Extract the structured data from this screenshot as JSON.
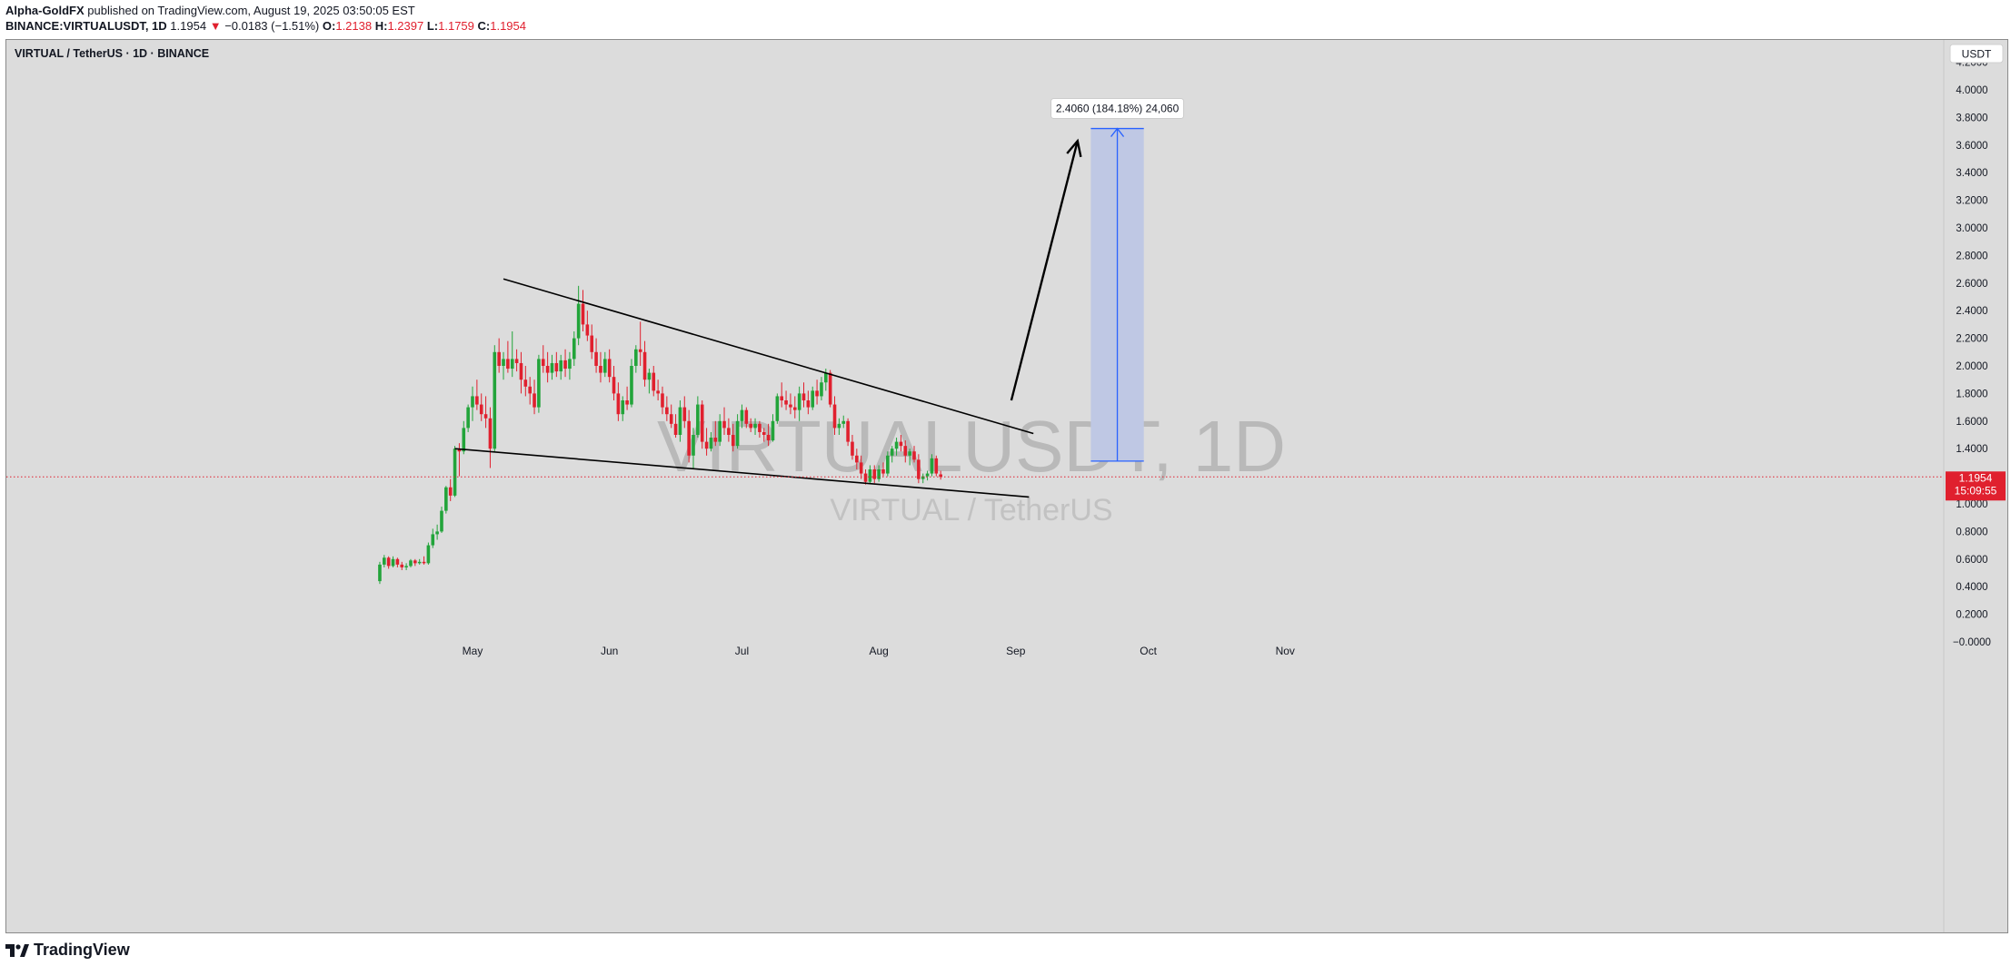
{
  "header": {
    "author": "Alpha-GoldFX",
    "published": "published on TradingView.com, August 19, 2025 03:50:05 EST",
    "symbol": "BINANCE:VIRTUALUSDT, 1D",
    "last": "1.1954",
    "change": "−0.0183 (−1.51%)",
    "open_label": "O:",
    "open": "1.2138",
    "high_label": "H:",
    "high": "1.2397",
    "low_label": "L:",
    "low": "1.1759",
    "close_label": "C:",
    "close": "1.1954"
  },
  "pane_title": "VIRTUAL / TetherUS · 1D · BINANCE",
  "currency_button": "USDT",
  "watermark": {
    "symbol": "VIRTUALUSDT, 1D",
    "pair": "VIRTUAL / TetherUS"
  },
  "price_tag": {
    "price": "1.1954",
    "countdown": "15:09:55"
  },
  "measure_label": "2.4060 (184.18%) 24,060",
  "brand": "TradingView",
  "colors": {
    "up": "#22a43a",
    "down": "#e0202e",
    "background": "#dcdcdc",
    "target_fill": "#bfc8e4",
    "target_line": "#2962ff"
  },
  "chart_data": {
    "type": "candlestick",
    "ylim": [
      0,
      4.3
    ],
    "y_ticks": [
      "4.2000",
      "4.0000",
      "3.8000",
      "3.6000",
      "3.4000",
      "3.2000",
      "3.0000",
      "2.8000",
      "2.6000",
      "2.4000",
      "2.2000",
      "2.0000",
      "1.8000",
      "1.6000",
      "1.4000",
      "1.2000",
      "1.0000",
      "0.8000",
      "0.6000",
      "0.4000",
      "0.2000",
      "−0.0000"
    ],
    "x_ticks": [
      {
        "label": "May",
        "date": "2025-05-01"
      },
      {
        "label": "Jun",
        "date": "2025-06-01"
      },
      {
        "label": "Jul",
        "date": "2025-07-01"
      },
      {
        "label": "Aug",
        "date": "2025-08-01"
      },
      {
        "label": "Sep",
        "date": "2025-09-01"
      },
      {
        "label": "Oct",
        "date": "2025-10-01"
      },
      {
        "label": "Nov",
        "date": "2025-11-01"
      }
    ],
    "candles": [
      {
        "d": "2025-04-10",
        "o": 0.44,
        "h": 0.58,
        "l": 0.42,
        "c": 0.56
      },
      {
        "d": "2025-04-11",
        "o": 0.56,
        "h": 0.63,
        "l": 0.54,
        "c": 0.61
      },
      {
        "d": "2025-04-12",
        "o": 0.61,
        "h": 0.62,
        "l": 0.53,
        "c": 0.55
      },
      {
        "d": "2025-04-13",
        "o": 0.55,
        "h": 0.62,
        "l": 0.54,
        "c": 0.6
      },
      {
        "d": "2025-04-14",
        "o": 0.6,
        "h": 0.61,
        "l": 0.54,
        "c": 0.56
      },
      {
        "d": "2025-04-15",
        "o": 0.56,
        "h": 0.58,
        "l": 0.52,
        "c": 0.54
      },
      {
        "d": "2025-04-16",
        "o": 0.54,
        "h": 0.57,
        "l": 0.52,
        "c": 0.55
      },
      {
        "d": "2025-04-17",
        "o": 0.55,
        "h": 0.6,
        "l": 0.54,
        "c": 0.59
      },
      {
        "d": "2025-04-18",
        "o": 0.59,
        "h": 0.6,
        "l": 0.55,
        "c": 0.57
      },
      {
        "d": "2025-04-19",
        "o": 0.57,
        "h": 0.6,
        "l": 0.56,
        "c": 0.58
      },
      {
        "d": "2025-04-20",
        "o": 0.58,
        "h": 0.62,
        "l": 0.56,
        "c": 0.57
      },
      {
        "d": "2025-04-21",
        "o": 0.57,
        "h": 0.72,
        "l": 0.56,
        "c": 0.7
      },
      {
        "d": "2025-04-22",
        "o": 0.7,
        "h": 0.82,
        "l": 0.68,
        "c": 0.78
      },
      {
        "d": "2025-04-23",
        "o": 0.78,
        "h": 0.85,
        "l": 0.74,
        "c": 0.8
      },
      {
        "d": "2025-04-24",
        "o": 0.8,
        "h": 0.98,
        "l": 0.79,
        "c": 0.95
      },
      {
        "d": "2025-04-25",
        "o": 0.95,
        "h": 1.13,
        "l": 0.93,
        "c": 1.12
      },
      {
        "d": "2025-04-26",
        "o": 1.12,
        "h": 1.18,
        "l": 1.02,
        "c": 1.06
      },
      {
        "d": "2025-04-27",
        "o": 1.06,
        "h": 1.42,
        "l": 1.05,
        "c": 1.4
      },
      {
        "d": "2025-04-28",
        "o": 1.4,
        "h": 1.44,
        "l": 1.2,
        "c": 1.38
      },
      {
        "d": "2025-04-29",
        "o": 1.38,
        "h": 1.6,
        "l": 1.36,
        "c": 1.55
      },
      {
        "d": "2025-04-30",
        "o": 1.55,
        "h": 1.72,
        "l": 1.52,
        "c": 1.7
      },
      {
        "d": "2025-05-01",
        "o": 1.7,
        "h": 1.85,
        "l": 1.6,
        "c": 1.78
      },
      {
        "d": "2025-05-02",
        "o": 1.78,
        "h": 1.9,
        "l": 1.68,
        "c": 1.72
      },
      {
        "d": "2025-05-03",
        "o": 1.72,
        "h": 1.8,
        "l": 1.6,
        "c": 1.65
      },
      {
        "d": "2025-05-04",
        "o": 1.65,
        "h": 1.78,
        "l": 1.55,
        "c": 1.62
      },
      {
        "d": "2025-05-05",
        "o": 1.62,
        "h": 1.7,
        "l": 1.26,
        "c": 1.4
      },
      {
        "d": "2025-05-06",
        "o": 1.4,
        "h": 2.15,
        "l": 1.38,
        "c": 2.1
      },
      {
        "d": "2025-05-07",
        "o": 2.1,
        "h": 2.2,
        "l": 1.95,
        "c": 2.0
      },
      {
        "d": "2025-05-08",
        "o": 2.0,
        "h": 2.1,
        "l": 1.9,
        "c": 2.05
      },
      {
        "d": "2025-05-09",
        "o": 2.05,
        "h": 2.18,
        "l": 1.95,
        "c": 1.98
      },
      {
        "d": "2025-05-10",
        "o": 1.98,
        "h": 2.25,
        "l": 1.92,
        "c": 2.05
      },
      {
        "d": "2025-05-11",
        "o": 2.05,
        "h": 2.12,
        "l": 1.96,
        "c": 2.02
      },
      {
        "d": "2025-05-12",
        "o": 2.02,
        "h": 2.1,
        "l": 1.8,
        "c": 1.9
      },
      {
        "d": "2025-05-13",
        "o": 1.9,
        "h": 2.0,
        "l": 1.78,
        "c": 1.85
      },
      {
        "d": "2025-05-14",
        "o": 1.85,
        "h": 1.92,
        "l": 1.72,
        "c": 1.8
      },
      {
        "d": "2025-05-15",
        "o": 1.8,
        "h": 1.9,
        "l": 1.65,
        "c": 1.7
      },
      {
        "d": "2025-05-16",
        "o": 1.7,
        "h": 2.08,
        "l": 1.66,
        "c": 2.05
      },
      {
        "d": "2025-05-17",
        "o": 2.05,
        "h": 2.15,
        "l": 1.95,
        "c": 2.0
      },
      {
        "d": "2025-05-18",
        "o": 2.0,
        "h": 2.1,
        "l": 1.88,
        "c": 1.95
      },
      {
        "d": "2025-05-19",
        "o": 1.95,
        "h": 2.08,
        "l": 1.9,
        "c": 2.02
      },
      {
        "d": "2025-05-20",
        "o": 2.02,
        "h": 2.1,
        "l": 1.92,
        "c": 1.96
      },
      {
        "d": "2025-05-21",
        "o": 1.96,
        "h": 2.08,
        "l": 1.9,
        "c": 2.04
      },
      {
        "d": "2025-05-22",
        "o": 2.04,
        "h": 2.12,
        "l": 1.92,
        "c": 1.98
      },
      {
        "d": "2025-05-23",
        "o": 1.98,
        "h": 2.1,
        "l": 1.9,
        "c": 2.05
      },
      {
        "d": "2025-05-24",
        "o": 2.05,
        "h": 2.25,
        "l": 2.0,
        "c": 2.2
      },
      {
        "d": "2025-05-25",
        "o": 2.2,
        "h": 2.58,
        "l": 2.15,
        "c": 2.45
      },
      {
        "d": "2025-05-26",
        "o": 2.45,
        "h": 2.55,
        "l": 2.25,
        "c": 2.3
      },
      {
        "d": "2025-05-27",
        "o": 2.3,
        "h": 2.4,
        "l": 2.18,
        "c": 2.22
      },
      {
        "d": "2025-05-28",
        "o": 2.22,
        "h": 2.3,
        "l": 2.05,
        "c": 2.1
      },
      {
        "d": "2025-05-29",
        "o": 2.1,
        "h": 2.2,
        "l": 1.95,
        "c": 2.0
      },
      {
        "d": "2025-05-30",
        "o": 2.0,
        "h": 2.1,
        "l": 1.88,
        "c": 1.95
      },
      {
        "d": "2025-05-31",
        "o": 1.95,
        "h": 2.1,
        "l": 1.92,
        "c": 2.05
      },
      {
        "d": "2025-06-01",
        "o": 2.05,
        "h": 2.12,
        "l": 1.88,
        "c": 1.92
      },
      {
        "d": "2025-06-02",
        "o": 1.92,
        "h": 2.0,
        "l": 1.75,
        "c": 1.8
      },
      {
        "d": "2025-06-03",
        "o": 1.8,
        "h": 1.88,
        "l": 1.6,
        "c": 1.65
      },
      {
        "d": "2025-06-04",
        "o": 1.65,
        "h": 1.78,
        "l": 1.6,
        "c": 1.75
      },
      {
        "d": "2025-06-05",
        "o": 1.75,
        "h": 1.85,
        "l": 1.68,
        "c": 1.72
      },
      {
        "d": "2025-06-06",
        "o": 1.72,
        "h": 2.05,
        "l": 1.7,
        "c": 2.0
      },
      {
        "d": "2025-06-07",
        "o": 2.0,
        "h": 2.15,
        "l": 1.95,
        "c": 2.12
      },
      {
        "d": "2025-06-08",
        "o": 2.12,
        "h": 2.32,
        "l": 2.0,
        "c": 2.1
      },
      {
        "d": "2025-06-09",
        "o": 2.1,
        "h": 2.18,
        "l": 1.85,
        "c": 1.9
      },
      {
        "d": "2025-06-10",
        "o": 1.9,
        "h": 1.98,
        "l": 1.8,
        "c": 1.95
      },
      {
        "d": "2025-06-11",
        "o": 1.95,
        "h": 2.0,
        "l": 1.78,
        "c": 1.82
      },
      {
        "d": "2025-06-12",
        "o": 1.82,
        "h": 1.9,
        "l": 1.75,
        "c": 1.8
      },
      {
        "d": "2025-06-13",
        "o": 1.8,
        "h": 1.85,
        "l": 1.65,
        "c": 1.7
      },
      {
        "d": "2025-06-14",
        "o": 1.7,
        "h": 1.78,
        "l": 1.6,
        "c": 1.65
      },
      {
        "d": "2025-06-15",
        "o": 1.65,
        "h": 1.72,
        "l": 1.55,
        "c": 1.58
      },
      {
        "d": "2025-06-16",
        "o": 1.58,
        "h": 1.65,
        "l": 1.48,
        "c": 1.5
      },
      {
        "d": "2025-06-17",
        "o": 1.5,
        "h": 1.75,
        "l": 1.45,
        "c": 1.7
      },
      {
        "d": "2025-06-18",
        "o": 1.7,
        "h": 1.78,
        "l": 1.55,
        "c": 1.6
      },
      {
        "d": "2025-06-19",
        "o": 1.6,
        "h": 1.68,
        "l": 1.3,
        "c": 1.35
      },
      {
        "d": "2025-06-20",
        "o": 1.35,
        "h": 1.55,
        "l": 1.25,
        "c": 1.5
      },
      {
        "d": "2025-06-21",
        "o": 1.5,
        "h": 1.78,
        "l": 1.48,
        "c": 1.72
      },
      {
        "d": "2025-06-22",
        "o": 1.72,
        "h": 1.75,
        "l": 1.4,
        "c": 1.45
      },
      {
        "d": "2025-06-23",
        "o": 1.45,
        "h": 1.55,
        "l": 1.35,
        "c": 1.4
      },
      {
        "d": "2025-06-24",
        "o": 1.4,
        "h": 1.52,
        "l": 1.38,
        "c": 1.48
      },
      {
        "d": "2025-06-25",
        "o": 1.48,
        "h": 1.6,
        "l": 1.42,
        "c": 1.45
      },
      {
        "d": "2025-06-26",
        "o": 1.45,
        "h": 1.65,
        "l": 1.42,
        "c": 1.6
      },
      {
        "d": "2025-06-27",
        "o": 1.6,
        "h": 1.7,
        "l": 1.5,
        "c": 1.55
      },
      {
        "d": "2025-06-28",
        "o": 1.55,
        "h": 1.62,
        "l": 1.45,
        "c": 1.5
      },
      {
        "d": "2025-06-29",
        "o": 1.5,
        "h": 1.58,
        "l": 1.38,
        "c": 1.42
      },
      {
        "d": "2025-06-30",
        "o": 1.42,
        "h": 1.65,
        "l": 1.4,
        "c": 1.6
      },
      {
        "d": "2025-07-01",
        "o": 1.6,
        "h": 1.72,
        "l": 1.55,
        "c": 1.68
      },
      {
        "d": "2025-07-02",
        "o": 1.68,
        "h": 1.7,
        "l": 1.55,
        "c": 1.58
      },
      {
        "d": "2025-07-03",
        "o": 1.58,
        "h": 1.62,
        "l": 1.52,
        "c": 1.55
      },
      {
        "d": "2025-07-04",
        "o": 1.55,
        "h": 1.62,
        "l": 1.5,
        "c": 1.58
      },
      {
        "d": "2025-07-05",
        "o": 1.58,
        "h": 1.6,
        "l": 1.48,
        "c": 1.52
      },
      {
        "d": "2025-07-06",
        "o": 1.52,
        "h": 1.55,
        "l": 1.45,
        "c": 1.5
      },
      {
        "d": "2025-07-07",
        "o": 1.5,
        "h": 1.58,
        "l": 1.42,
        "c": 1.46
      },
      {
        "d": "2025-07-08",
        "o": 1.46,
        "h": 1.65,
        "l": 1.45,
        "c": 1.6
      },
      {
        "d": "2025-07-09",
        "o": 1.6,
        "h": 1.8,
        "l": 1.58,
        "c": 1.78
      },
      {
        "d": "2025-07-10",
        "o": 1.78,
        "h": 1.88,
        "l": 1.7,
        "c": 1.75
      },
      {
        "d": "2025-07-11",
        "o": 1.75,
        "h": 1.82,
        "l": 1.68,
        "c": 1.72
      },
      {
        "d": "2025-07-12",
        "o": 1.72,
        "h": 1.8,
        "l": 1.65,
        "c": 1.7
      },
      {
        "d": "2025-07-13",
        "o": 1.7,
        "h": 1.78,
        "l": 1.62,
        "c": 1.68
      },
      {
        "d": "2025-07-14",
        "o": 1.68,
        "h": 1.85,
        "l": 1.6,
        "c": 1.8
      },
      {
        "d": "2025-07-15",
        "o": 1.8,
        "h": 1.88,
        "l": 1.7,
        "c": 1.75
      },
      {
        "d": "2025-07-16",
        "o": 1.75,
        "h": 1.82,
        "l": 1.65,
        "c": 1.7
      },
      {
        "d": "2025-07-17",
        "o": 1.7,
        "h": 1.85,
        "l": 1.68,
        "c": 1.82
      },
      {
        "d": "2025-07-18",
        "o": 1.82,
        "h": 1.9,
        "l": 1.72,
        "c": 1.78
      },
      {
        "d": "2025-07-19",
        "o": 1.78,
        "h": 1.92,
        "l": 1.75,
        "c": 1.88
      },
      {
        "d": "2025-07-20",
        "o": 1.88,
        "h": 1.98,
        "l": 1.82,
        "c": 1.95
      },
      {
        "d": "2025-07-21",
        "o": 1.95,
        "h": 1.97,
        "l": 1.7,
        "c": 1.72
      },
      {
        "d": "2025-07-22",
        "o": 1.72,
        "h": 1.78,
        "l": 1.5,
        "c": 1.55
      },
      {
        "d": "2025-07-23",
        "o": 1.55,
        "h": 1.62,
        "l": 1.5,
        "c": 1.58
      },
      {
        "d": "2025-07-24",
        "o": 1.58,
        "h": 1.64,
        "l": 1.55,
        "c": 1.6
      },
      {
        "d": "2025-07-25",
        "o": 1.6,
        "h": 1.62,
        "l": 1.42,
        "c": 1.45
      },
      {
        "d": "2025-07-26",
        "o": 1.45,
        "h": 1.5,
        "l": 1.32,
        "c": 1.35
      },
      {
        "d": "2025-07-27",
        "o": 1.35,
        "h": 1.4,
        "l": 1.25,
        "c": 1.3
      },
      {
        "d": "2025-07-28",
        "o": 1.3,
        "h": 1.35,
        "l": 1.18,
        "c": 1.22
      },
      {
        "d": "2025-07-29",
        "o": 1.22,
        "h": 1.25,
        "l": 1.14,
        "c": 1.16
      },
      {
        "d": "2025-07-30",
        "o": 1.16,
        "h": 1.28,
        "l": 1.15,
        "c": 1.25
      },
      {
        "d": "2025-07-31",
        "o": 1.25,
        "h": 1.28,
        "l": 1.15,
        "c": 1.18
      },
      {
        "d": "2025-08-01",
        "o": 1.18,
        "h": 1.28,
        "l": 1.16,
        "c": 1.25
      },
      {
        "d": "2025-08-02",
        "o": 1.25,
        "h": 1.3,
        "l": 1.2,
        "c": 1.22
      },
      {
        "d": "2025-08-03",
        "o": 1.22,
        "h": 1.38,
        "l": 1.2,
        "c": 1.35
      },
      {
        "d": "2025-08-04",
        "o": 1.35,
        "h": 1.42,
        "l": 1.3,
        "c": 1.4
      },
      {
        "d": "2025-08-05",
        "o": 1.4,
        "h": 1.48,
        "l": 1.35,
        "c": 1.45
      },
      {
        "d": "2025-08-06",
        "o": 1.45,
        "h": 1.5,
        "l": 1.38,
        "c": 1.42
      },
      {
        "d": "2025-08-07",
        "o": 1.42,
        "h": 1.46,
        "l": 1.3,
        "c": 1.35
      },
      {
        "d": "2025-08-08",
        "o": 1.35,
        "h": 1.4,
        "l": 1.28,
        "c": 1.38
      },
      {
        "d": "2025-08-09",
        "o": 1.38,
        "h": 1.42,
        "l": 1.3,
        "c": 1.32
      },
      {
        "d": "2025-08-10",
        "o": 1.32,
        "h": 1.36,
        "l": 1.15,
        "c": 1.18
      },
      {
        "d": "2025-08-11",
        "o": 1.18,
        "h": 1.22,
        "l": 1.15,
        "c": 1.2
      },
      {
        "d": "2025-08-12",
        "o": 1.2,
        "h": 1.24,
        "l": 1.17,
        "c": 1.22
      },
      {
        "d": "2025-08-13",
        "o": 1.22,
        "h": 1.36,
        "l": 1.2,
        "c": 1.33
      },
      {
        "d": "2025-08-14",
        "o": 1.33,
        "h": 1.35,
        "l": 1.2,
        "c": 1.22
      },
      {
        "d": "2025-08-15",
        "o": 1.2138,
        "h": 1.2397,
        "l": 1.1759,
        "c": 1.1954
      }
    ],
    "drawings": {
      "upper_trendline": [
        {
          "d": "2025-05-08",
          "v": 2.63
        },
        {
          "d": "2025-09-05",
          "v": 1.51
        }
      ],
      "lower_trendline": [
        {
          "d": "2025-04-27",
          "v": 1.4
        },
        {
          "d": "2025-09-04",
          "v": 1.05
        }
      ],
      "projection_arrow": [
        {
          "d": "2025-08-31",
          "v": 1.75
        },
        {
          "d": "2025-09-15",
          "v": 3.63
        }
      ],
      "target_box": {
        "d_start": "2025-09-18",
        "d_end": "2025-09-30",
        "v_low": 1.31,
        "v_high": 3.72
      },
      "last_price": 1.1954
    }
  }
}
